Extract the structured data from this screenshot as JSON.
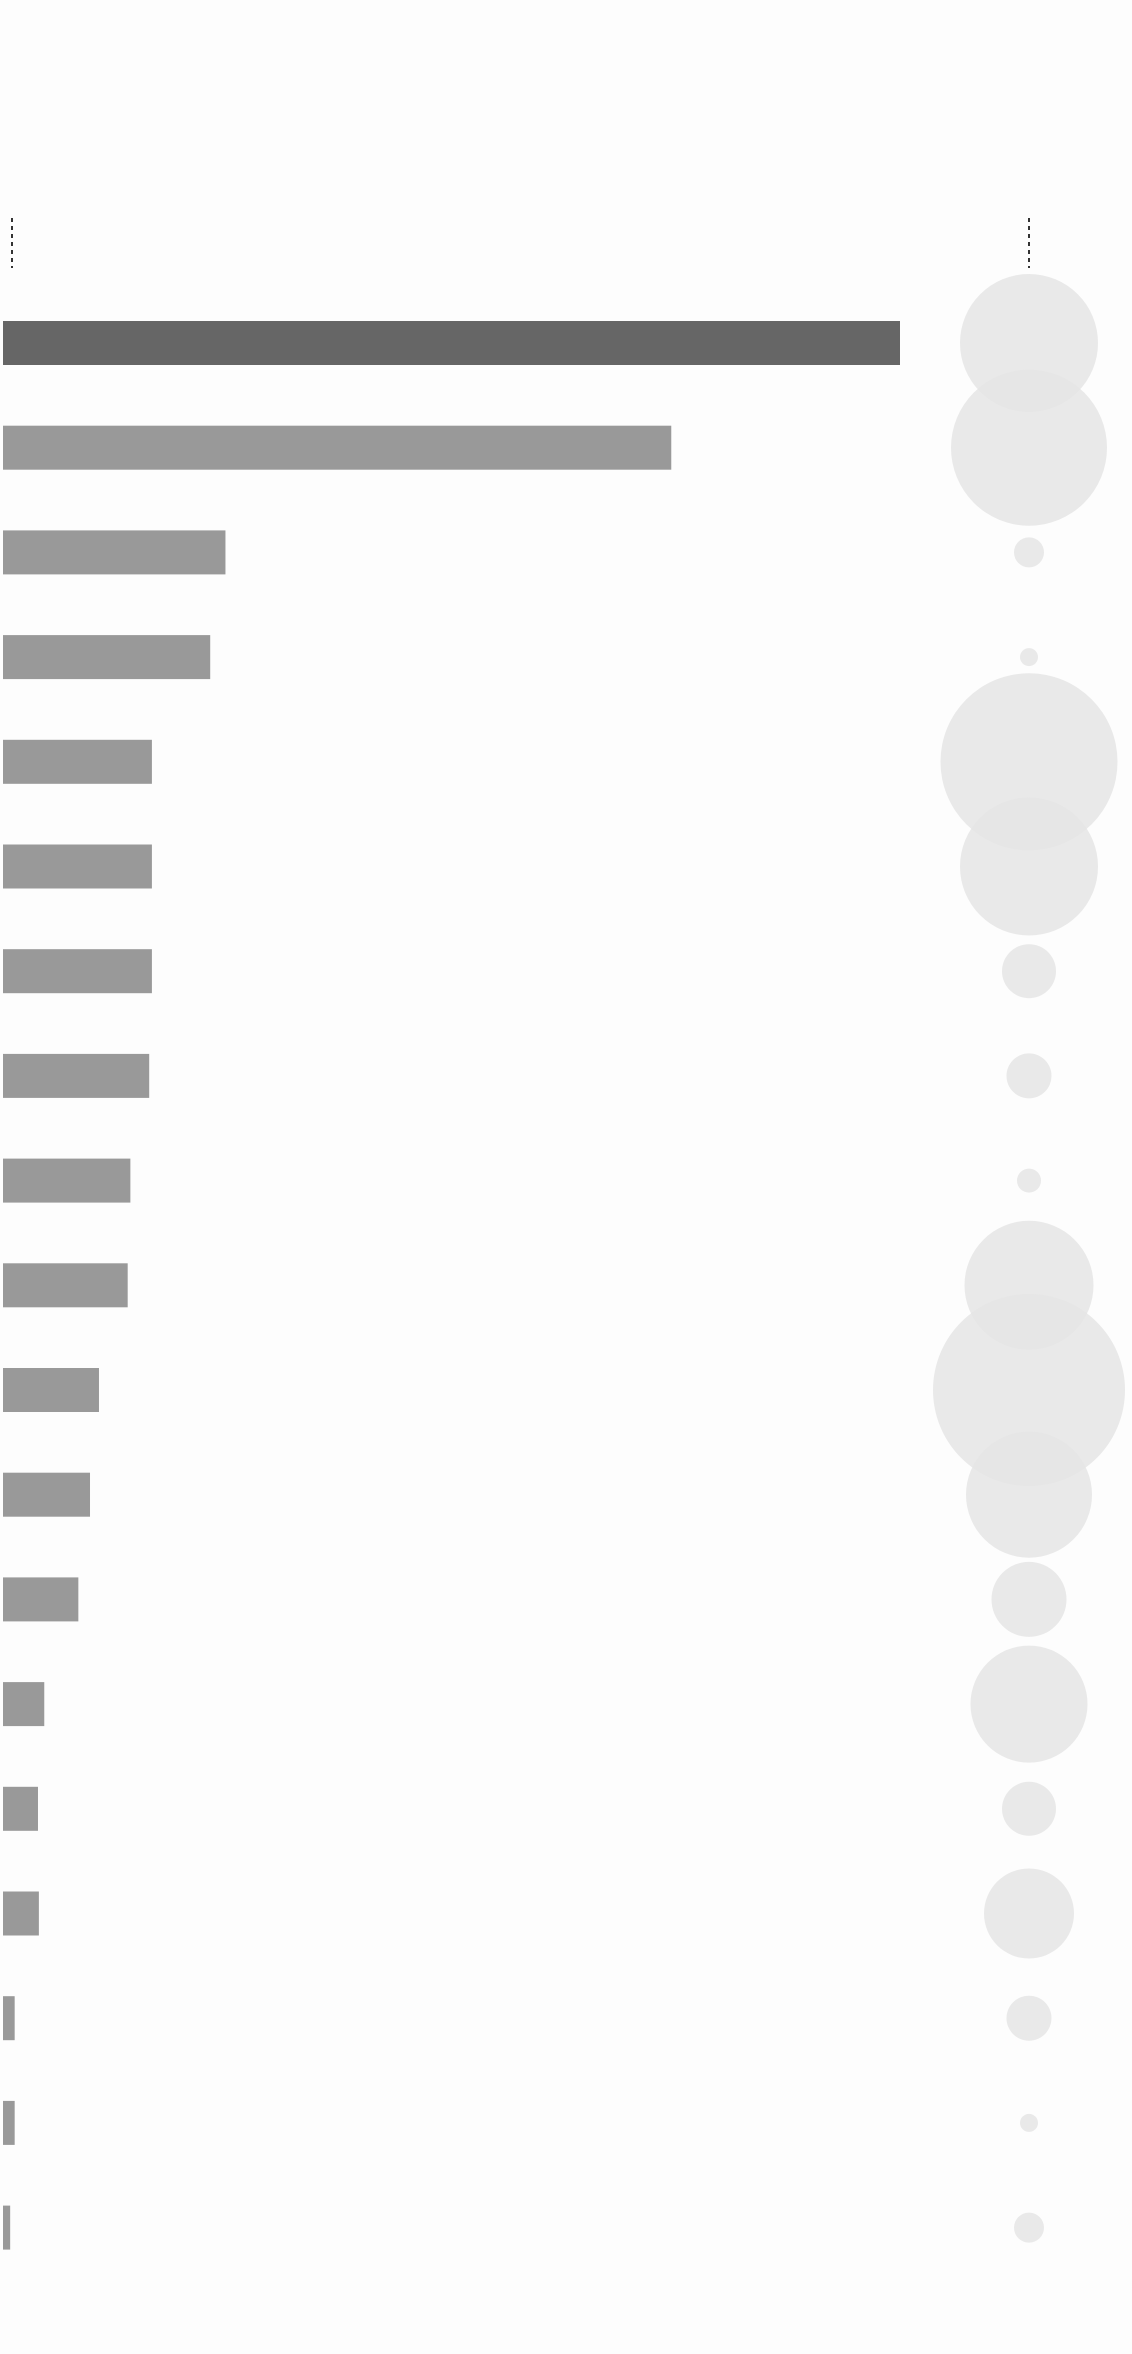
{
  "chart_data": {
    "type": "bar",
    "orientation": "horizontal",
    "title": "",
    "xlabel": "",
    "ylabel": "",
    "grid": false,
    "categories": [
      "",
      "",
      "",
      "",
      "",
      "",
      "",
      "",
      "",
      "",
      "",
      "",
      "",
      "",
      "",
      "",
      "",
      "",
      ""
    ],
    "values": [
      100,
      74.5,
      24.8,
      23.1,
      16.6,
      16.6,
      16.6,
      16.3,
      14.2,
      13.9,
      10.7,
      9.7,
      8.4,
      4.6,
      3.9,
      4.0,
      1.3,
      1.3,
      0.8
    ],
    "xlim": [
      0,
      100
    ],
    "highlight_index": 0,
    "bubbles": {
      "values": [
        46,
        52,
        10,
        6,
        59,
        46,
        18,
        15,
        8,
        43,
        64,
        42,
        25,
        39,
        18,
        30,
        15,
        6,
        10
      ],
      "max_value": 64
    },
    "colors": {
      "highlight_bar": "#666666",
      "bar": "#999999",
      "bubble": "#e5e5e5",
      "marker": "#333333",
      "background": "#fdfdfd"
    }
  }
}
